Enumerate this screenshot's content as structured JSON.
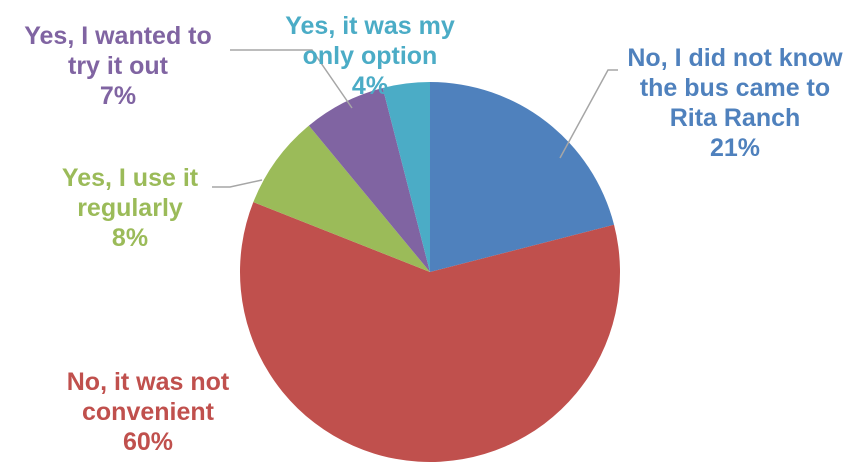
{
  "chart_data": {
    "type": "pie",
    "title": "",
    "start_angle_deg": 0,
    "direction": "clockwise",
    "legend": "none",
    "slices": [
      {
        "label_lines": [
          "No, I did not know",
          "the bus came to",
          "Rita Ranch"
        ],
        "percent_label": "21%",
        "value": 21,
        "color": "#4f81bd"
      },
      {
        "label_lines": [
          "No, it was not",
          "convenient"
        ],
        "percent_label": "60%",
        "value": 60,
        "color": "#c0504d"
      },
      {
        "label_lines": [
          "Yes, I use it",
          "regularly"
        ],
        "percent_label": "8%",
        "value": 8,
        "color": "#9bbb59"
      },
      {
        "label_lines": [
          "Yes, I wanted to",
          "try it out"
        ],
        "percent_label": "7%",
        "value": 7,
        "color": "#8064a2"
      },
      {
        "label_lines": [
          "Yes, it was my",
          "only option"
        ],
        "percent_label": "4%",
        "value": 4,
        "color": "#4bacc6"
      }
    ]
  }
}
